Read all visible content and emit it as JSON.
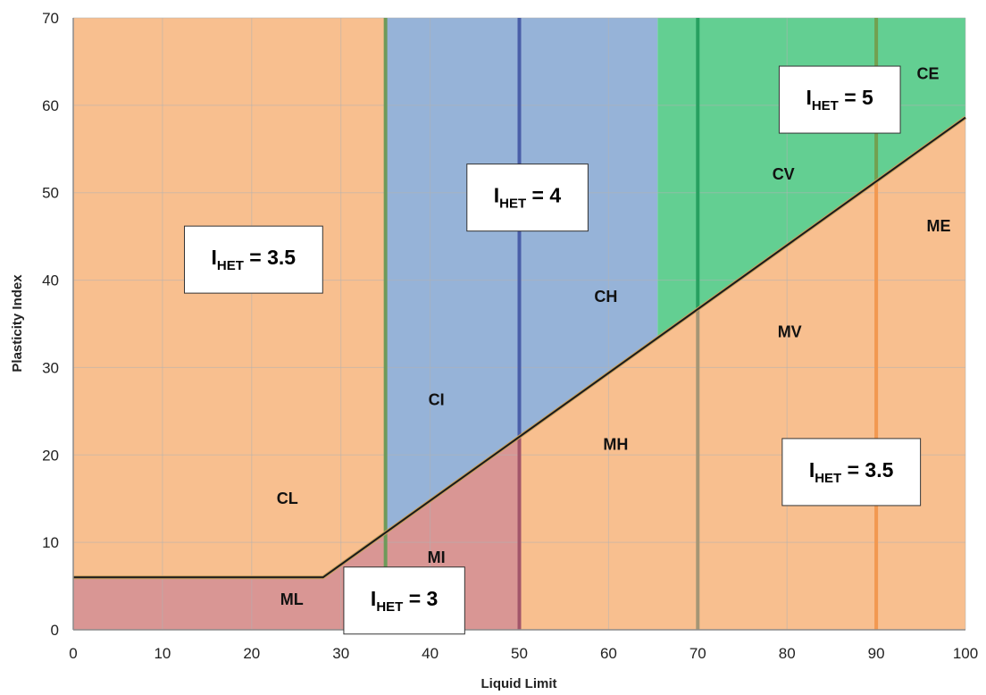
{
  "chart_data": {
    "type": "area",
    "xlabel": "Liquid Limit",
    "ylabel": "Plasticity Index",
    "xlim": [
      0,
      100
    ],
    "ylim": [
      0,
      70
    ],
    "xticks": [
      0,
      10,
      20,
      30,
      40,
      50,
      60,
      70,
      80,
      90,
      100
    ],
    "yticks": [
      0,
      10,
      20,
      30,
      40,
      50,
      60,
      70
    ],
    "grid": true,
    "a_line": [
      [
        0,
        6
      ],
      [
        28,
        6
      ],
      [
        100,
        58.6
      ]
    ],
    "regions": [
      {
        "fill": "#f8bf8f",
        "polygon": [
          [
            0,
            6
          ],
          [
            28,
            6
          ],
          [
            35,
            11.1
          ],
          [
            35,
            70
          ],
          [
            0,
            70
          ]
        ]
      },
      {
        "fill": "#96b3d8",
        "polygon": [
          [
            35,
            11.1
          ],
          [
            65.5,
            33.4
          ],
          [
            65.5,
            70
          ],
          [
            35,
            70
          ]
        ]
      },
      {
        "fill": "#63cf92",
        "polygon": [
          [
            65.5,
            33.4
          ],
          [
            100,
            58.6
          ],
          [
            100,
            70
          ],
          [
            65.5,
            70
          ]
        ]
      },
      {
        "fill": "#d99694",
        "polygon": [
          [
            0,
            0
          ],
          [
            50,
            0
          ],
          [
            50,
            22.0
          ],
          [
            28,
            6
          ],
          [
            0,
            6
          ]
        ]
      },
      {
        "fill": "#f8bf8f",
        "polygon": [
          [
            50,
            0
          ],
          [
            100,
            0
          ],
          [
            100,
            58.6
          ],
          [
            50,
            22.0
          ]
        ]
      }
    ],
    "boundaries": [
      {
        "x": 35,
        "y_range": [
          0,
          70
        ],
        "color": "#6e9a5a"
      },
      {
        "x": 50,
        "y_range": [
          22,
          70
        ],
        "color": "#4a5ea8"
      },
      {
        "x": 50,
        "y_range": [
          0,
          22
        ],
        "color": "#a3566a"
      },
      {
        "x": 70,
        "y_range": [
          36.6,
          70
        ],
        "color": "#27a060"
      },
      {
        "x": 70,
        "y_range": [
          0,
          36.6
        ],
        "color": "#a59675"
      },
      {
        "x": 90,
        "y_range": [
          51.2,
          70
        ],
        "color": "#72a050"
      },
      {
        "x": 90,
        "y_range": [
          0,
          51.2
        ],
        "color": "#f29850"
      }
    ],
    "zone_labels": [
      {
        "text": "CL",
        "x": 24,
        "y": 15
      },
      {
        "text": "ML",
        "x": 24.5,
        "y": 3.5
      },
      {
        "text": "MI",
        "x": 40.7,
        "y": 8.3
      },
      {
        "text": "CI",
        "x": 40.7,
        "y": 26.3
      },
      {
        "text": "CH",
        "x": 59.7,
        "y": 38.1
      },
      {
        "text": "MH",
        "x": 60.8,
        "y": 21.2
      },
      {
        "text": "MV",
        "x": 80.3,
        "y": 34.1
      },
      {
        "text": "CV",
        "x": 79.6,
        "y": 52.1
      },
      {
        "text": "ME",
        "x": 97,
        "y": 46.2
      },
      {
        "text": "CE",
        "x": 95.8,
        "y": 63.6
      }
    ],
    "annotations": [
      {
        "label": "I",
        "subscript": "HET",
        "value": " = 3.5",
        "x": 20.2,
        "y": 42.6
      },
      {
        "label": "I",
        "subscript": "HET",
        "value": " = 4",
        "x": 50.9,
        "y": 49.7
      },
      {
        "label": "I",
        "subscript": "HET",
        "value": " = 5",
        "x": 85.9,
        "y": 60.9
      },
      {
        "label": "I",
        "subscript": "HET",
        "value": " = 3",
        "x": 37.1,
        "y": 3.6
      },
      {
        "label": "I",
        "subscript": "HET",
        "value": " = 3.5",
        "x": 87.2,
        "y": 18.3
      }
    ]
  }
}
